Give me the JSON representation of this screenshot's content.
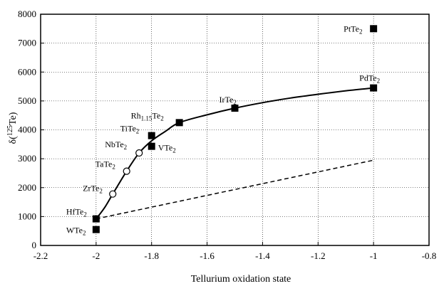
{
  "chart_data": {
    "type": "scatter",
    "xlabel": "Tellurium oxidation state",
    "ylabel_main": "δ(",
    "ylabel_sup": "125",
    "ylabel_tail": "Te)",
    "xlim": [
      -2.2,
      -0.8
    ],
    "ylim": [
      0,
      8000
    ],
    "xticks": [
      -2.2,
      -2,
      -1.8,
      -1.6,
      -1.4,
      -1.2,
      -1,
      -0.8
    ],
    "xtick_labels": [
      "-2.2",
      "-2",
      "-1.8",
      "-1.6",
      "-1.4",
      "-1.2",
      "-1",
      "-0.8"
    ],
    "yticks": [
      0,
      1000,
      2000,
      3000,
      4000,
      5000,
      6000,
      7000,
      8000
    ],
    "ytick_labels": [
      "0",
      "1000",
      "2000",
      "3000",
      "4000",
      "5000",
      "6000",
      "7000",
      "8000"
    ],
    "grid": true,
    "points": [
      {
        "label": "WTe",
        "sub": "2",
        "x": -2.0,
        "y": 550,
        "marker": "square"
      },
      {
        "label": "HfTe",
        "sub": "2",
        "x": -2.0,
        "y": 920,
        "marker": "square"
      },
      {
        "label": "ZrTe",
        "sub": "2",
        "x": -1.94,
        "y": 1780,
        "marker": "circle"
      },
      {
        "label": "TaTe",
        "sub": "2",
        "x": -1.89,
        "y": 2570,
        "marker": "circle"
      },
      {
        "label": "NbTe",
        "sub": "2",
        "x": -1.845,
        "y": 3200,
        "marker": "circle"
      },
      {
        "label": "VTe",
        "sub": "2",
        "x": -1.8,
        "y": 3430,
        "marker": "square"
      },
      {
        "label": "TiTe",
        "sub": "2",
        "x": -1.8,
        "y": 3800,
        "marker": "square"
      },
      {
        "label": "Rh",
        "sub": "1.15",
        "tail": "Te",
        "sub2": "2",
        "x": -1.7,
        "y": 4250,
        "marker": "square"
      },
      {
        "label": "IrTe",
        "sub": "2",
        "x": -1.5,
        "y": 4750,
        "marker": "square"
      },
      {
        "label": "PdTe",
        "sub": "2",
        "x": -1.0,
        "y": 5450,
        "marker": "square"
      },
      {
        "label": "PtTe",
        "sub": "2",
        "x": -1.0,
        "y": 7500,
        "marker": "square"
      }
    ],
    "fit_curve": {
      "style": "solid",
      "points": [
        [
          -2.0,
          920
        ],
        [
          -1.97,
          1300
        ],
        [
          -1.94,
          1780
        ],
        [
          -1.89,
          2570
        ],
        [
          -1.845,
          3200
        ],
        [
          -1.8,
          3620
        ],
        [
          -1.75,
          3950
        ],
        [
          -1.7,
          4250
        ],
        [
          -1.6,
          4520
        ],
        [
          -1.5,
          4750
        ],
        [
          -1.4,
          4940
        ],
        [
          -1.3,
          5100
        ],
        [
          -1.2,
          5230
        ],
        [
          -1.1,
          5350
        ],
        [
          -1.0,
          5450
        ]
      ]
    },
    "linear_line": {
      "style": "dashed",
      "points": [
        [
          -2.0,
          920
        ],
        [
          -1.0,
          2950
        ]
      ]
    }
  }
}
